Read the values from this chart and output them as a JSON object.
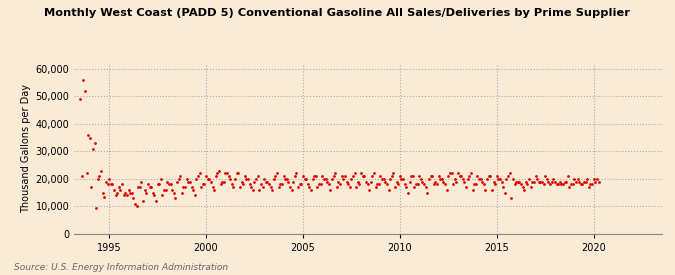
{
  "title": "Monthly West Coast (PADD 5) Conventional Gasoline All Sales/Deliveries by Prime Supplier",
  "ylabel": "Thousand Gallons per Day",
  "source": "Source: U.S. Energy Information Administration",
  "background_color": "#faebd7",
  "plot_bg_color": "#faebd7",
  "dot_color": "#dd0000",
  "ylim": [
    0,
    62000
  ],
  "yticks": [
    0,
    10000,
    20000,
    30000,
    40000,
    50000,
    60000
  ],
  "ytick_labels": [
    "0",
    "10,000",
    "20,000",
    "30,000",
    "40,000",
    "50,000",
    "60,000"
  ],
  "xticks": [
    1995,
    2000,
    2005,
    2010,
    2015,
    2020
  ],
  "xlim": [
    1993.2,
    2023.5
  ],
  "start_year_float": 1993.5,
  "data": [
    49000,
    21000,
    56000,
    52000,
    22000,
    36000,
    35000,
    17000,
    31000,
    33000,
    9500,
    20000,
    21000,
    23000,
    15000,
    13500,
    19000,
    18000,
    20000,
    18000,
    18000,
    16000,
    14000,
    15000,
    17000,
    16000,
    18000,
    14000,
    15000,
    14000,
    16000,
    15000,
    15000,
    13000,
    11000,
    10000,
    17000,
    17000,
    19000,
    12000,
    16000,
    15000,
    18000,
    17000,
    17000,
    15000,
    14000,
    12000,
    18000,
    18000,
    20000,
    14000,
    16000,
    16000,
    19000,
    18000,
    18000,
    16000,
    15000,
    13000,
    19000,
    20000,
    21000,
    15000,
    17000,
    17000,
    20000,
    19000,
    19000,
    17000,
    16000,
    14000,
    20000,
    21000,
    22000,
    17000,
    18000,
    18000,
    21000,
    20000,
    20000,
    19000,
    17000,
    16000,
    21000,
    22000,
    23000,
    18000,
    19000,
    19000,
    22000,
    22000,
    21000,
    20000,
    18000,
    17000,
    20000,
    22000,
    22000,
    17000,
    19000,
    18000,
    21000,
    20000,
    20000,
    18000,
    17000,
    16000,
    19000,
    20000,
    21000,
    16000,
    18000,
    17000,
    20000,
    19000,
    19000,
    18000,
    17000,
    16000,
    20000,
    21000,
    22000,
    17000,
    18000,
    18000,
    21000,
    20000,
    20000,
    19000,
    17000,
    16000,
    19000,
    21000,
    22000,
    17000,
    18000,
    18000,
    21000,
    20000,
    20000,
    18000,
    17000,
    16000,
    20000,
    21000,
    21000,
    17000,
    18000,
    18000,
    21000,
    20000,
    20000,
    19000,
    18000,
    16000,
    20000,
    21000,
    22000,
    17000,
    19000,
    18000,
    21000,
    20000,
    21000,
    19000,
    18000,
    17000,
    20000,
    21000,
    22000,
    17000,
    19000,
    18000,
    22000,
    21000,
    21000,
    19000,
    18000,
    16000,
    19000,
    21000,
    22000,
    17000,
    18000,
    18000,
    21000,
    20000,
    20000,
    19000,
    18000,
    16000,
    20000,
    21000,
    22000,
    17000,
    19000,
    18000,
    21000,
    20000,
    20000,
    18000,
    17000,
    15000,
    19000,
    21000,
    21000,
    17000,
    18000,
    18000,
    21000,
    20000,
    19000,
    18000,
    17000,
    15000,
    20000,
    21000,
    21000,
    18000,
    19000,
    18000,
    21000,
    20000,
    20000,
    19000,
    18000,
    16000,
    21000,
    22000,
    22000,
    18000,
    20000,
    19000,
    22000,
    21000,
    21000,
    20000,
    19000,
    17000,
    20000,
    21000,
    22000,
    16000,
    18000,
    18000,
    21000,
    20000,
    20000,
    19000,
    18000,
    16000,
    20000,
    21000,
    21000,
    16000,
    19000,
    18000,
    21000,
    20000,
    20000,
    19000,
    17000,
    15000,
    20000,
    21000,
    22000,
    13000,
    20000,
    18000,
    19000,
    19000,
    19000,
    18000,
    17000,
    16000,
    19000,
    18000,
    20000,
    17000,
    19000,
    19000,
    21000,
    20000,
    19000,
    19000,
    19000,
    18000,
    21000,
    20000,
    19000,
    18000,
    19000,
    20000,
    19000,
    18000,
    18000,
    19000,
    18000,
    18000,
    19000,
    19000,
    21000,
    17000,
    18000,
    18000,
    20000,
    19000,
    20000,
    19000,
    18000,
    18000,
    19000,
    19000,
    20000,
    17000,
    18000,
    18000,
    20000,
    19000,
    20000,
    19000
  ]
}
